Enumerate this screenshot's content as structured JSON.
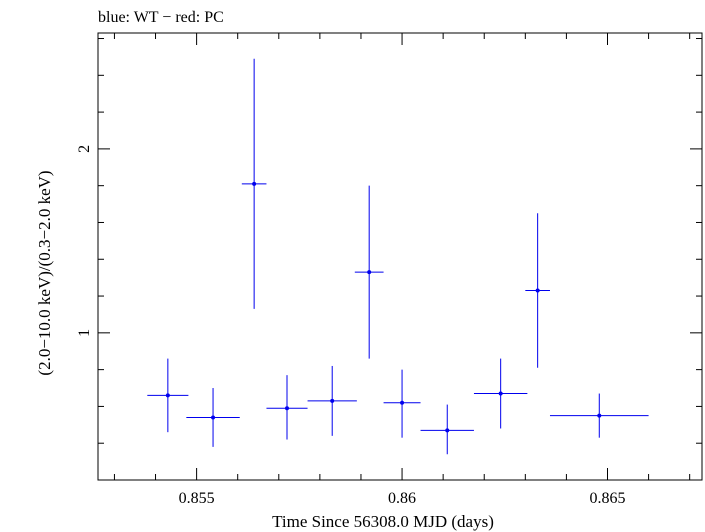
{
  "chart_data": {
    "type": "scatter",
    "title": "blue: WT − red: PC",
    "xlabel": "Time Since 56308.0 MJD (days)",
    "ylabel": "(2.0−10.0 keV)/(0.3−2.0 keV)",
    "xlim": [
      0.8526,
      0.8673
    ],
    "ylim": [
      0.2,
      2.63
    ],
    "x_ticks": [
      0.855,
      0.86,
      0.865
    ],
    "x_tick_labels": [
      "0.855",
      "0.86",
      "0.865"
    ],
    "y_ticks": [
      1,
      2
    ],
    "y_tick_labels": [
      "1",
      "2"
    ],
    "grid": false,
    "series": [
      {
        "color": "#0000ee",
        "points": [
          {
            "x": 0.8543,
            "y": 0.66,
            "xerr": 0.0005,
            "ylow": 0.46,
            "yhigh": 0.86
          },
          {
            "x": 0.8554,
            "y": 0.54,
            "xerr": 0.00065,
            "ylow": 0.38,
            "yhigh": 0.7
          },
          {
            "x": 0.8564,
            "y": 1.81,
            "xerr": 0.0003,
            "ylow": 1.13,
            "yhigh": 2.49
          },
          {
            "x": 0.8572,
            "y": 0.59,
            "xerr": 0.0005,
            "ylow": 0.42,
            "yhigh": 0.77
          },
          {
            "x": 0.8583,
            "y": 0.63,
            "xerr": 0.0006,
            "ylow": 0.44,
            "yhigh": 0.82
          },
          {
            "x": 0.8592,
            "y": 1.33,
            "xerr": 0.00035,
            "ylow": 0.86,
            "yhigh": 1.8
          },
          {
            "x": 0.86,
            "y": 0.62,
            "xerr": 0.00045,
            "ylow": 0.43,
            "yhigh": 0.8
          },
          {
            "x": 0.8611,
            "y": 0.47,
            "xerr": 0.00065,
            "ylow": 0.34,
            "yhigh": 0.61
          },
          {
            "x": 0.8624,
            "y": 0.67,
            "xerr": 0.00065,
            "ylow": 0.48,
            "yhigh": 0.86
          },
          {
            "x": 0.8633,
            "y": 1.23,
            "xerr": 0.0003,
            "ylow": 0.81,
            "yhigh": 1.65
          },
          {
            "x": 0.8648,
            "y": 0.55,
            "xerr": 0.0012,
            "ylow": 0.43,
            "yhigh": 0.67
          }
        ]
      }
    ]
  }
}
